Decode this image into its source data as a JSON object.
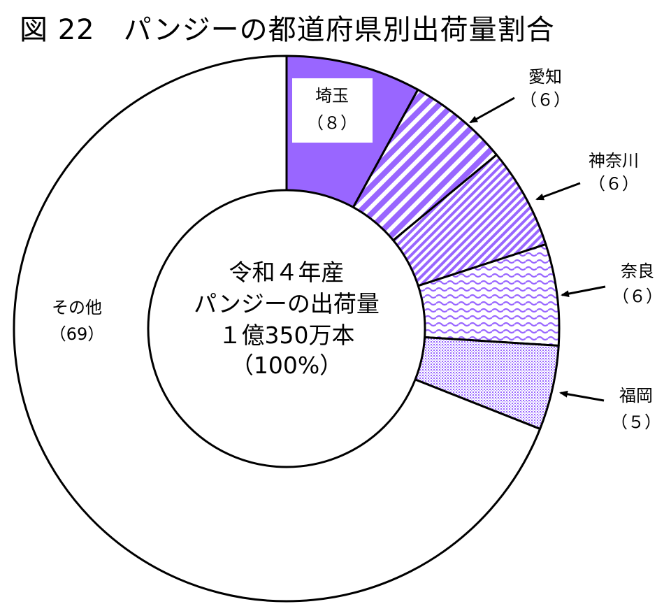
{
  "title": "図 22　パンジーの都道府県別出荷量割合",
  "center_label": {
    "line1": "令和４年産",
    "line2": "パンジーの出荷量",
    "line3": "１億350万本",
    "line4": "（100%）"
  },
  "chart_data": {
    "type": "pie",
    "variant": "donut",
    "title": "図 22　パンジーの都道府県別出荷量割合",
    "unit": "%",
    "start": "12 o'clock, clockwise",
    "slices": [
      {
        "label": "埼玉",
        "value": 8,
        "value_label": "（８）",
        "fill": "solid",
        "color": "#9966ff"
      },
      {
        "label": "愛知",
        "value": 6,
        "value_label": "（６）",
        "fill": "diagonal-stripes",
        "color": "#9966ff"
      },
      {
        "label": "神奈川",
        "value": 6,
        "value_label": "（６）",
        "fill": "diagonal-dense",
        "color": "#9966ff"
      },
      {
        "label": "奈良",
        "value": 6,
        "value_label": "（６）",
        "fill": "wavy",
        "color": "#9966ff"
      },
      {
        "label": "福岡",
        "value": 5,
        "value_label": "（５）",
        "fill": "dotted",
        "color": "#9966ff"
      },
      {
        "label": "その他",
        "value": 69,
        "value_label": "（69）",
        "fill": "none",
        "color": "#ffffff"
      }
    ]
  }
}
